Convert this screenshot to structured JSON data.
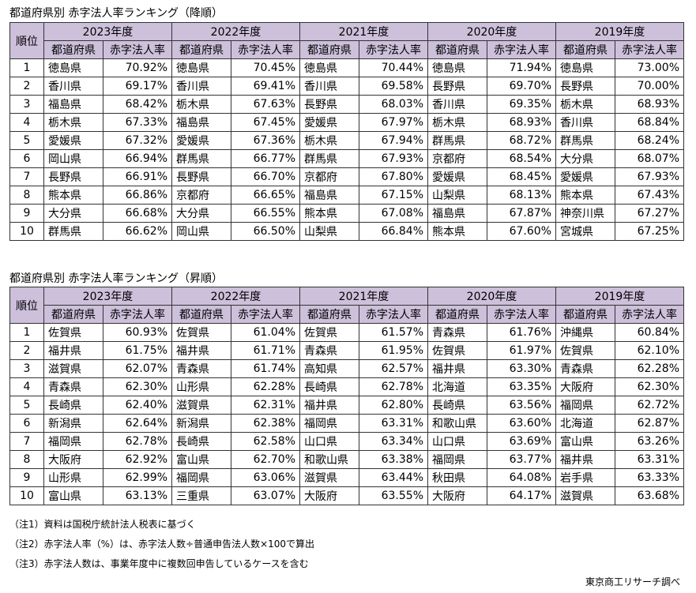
{
  "tables": [
    {
      "title": "都道府県別 赤字法人率ランキング（降順）",
      "header": [
        [
          "順位",
          "2023年度",
          "2022年度",
          "2021年度",
          "2020年度",
          "2019年度"
        ],
        [
          "都道府県",
          "赤字法人率",
          "都道府県",
          "赤字法人率",
          "都道府県",
          "赤字法人率",
          "都道府県",
          "赤字法人率",
          "都道府県",
          "赤字法人率"
        ]
      ],
      "rows": [
        [
          1,
          "徳島県",
          "70.92%",
          "徳島県",
          "70.45%",
          "徳島県",
          "70.44%",
          "徳島県",
          "71.94%",
          "徳島県",
          "73.00%"
        ],
        [
          2,
          "香川県",
          "69.17%",
          "香川県",
          "69.41%",
          "香川県",
          "69.58%",
          "長野県",
          "69.70%",
          "長野県",
          "70.00%"
        ],
        [
          3,
          "福島県",
          "68.42%",
          "栃木県",
          "67.63%",
          "長野県",
          "68.03%",
          "香川県",
          "69.35%",
          "栃木県",
          "68.93%"
        ],
        [
          4,
          "栃木県",
          "67.33%",
          "福島県",
          "67.45%",
          "愛媛県",
          "67.97%",
          "栃木県",
          "68.93%",
          "香川県",
          "68.84%"
        ],
        [
          5,
          "愛媛県",
          "67.32%",
          "愛媛県",
          "67.36%",
          "栃木県",
          "67.94%",
          "群馬県",
          "68.72%",
          "群馬県",
          "68.24%"
        ],
        [
          6,
          "岡山県",
          "66.94%",
          "群馬県",
          "66.77%",
          "群馬県",
          "67.93%",
          "京都府",
          "68.54%",
          "大分県",
          "68.07%"
        ],
        [
          7,
          "長野県",
          "66.91%",
          "長野県",
          "66.70%",
          "京都府",
          "67.80%",
          "愛媛県",
          "68.45%",
          "愛媛県",
          "67.93%"
        ],
        [
          8,
          "熊本県",
          "66.86%",
          "京都府",
          "66.65%",
          "福島県",
          "67.15%",
          "山梨県",
          "68.13%",
          "熊本県",
          "67.43%"
        ],
        [
          9,
          "大分県",
          "66.68%",
          "大分県",
          "66.55%",
          "熊本県",
          "67.08%",
          "福島県",
          "67.87%",
          "神奈川県",
          "67.27%"
        ],
        [
          10,
          "群馬県",
          "66.62%",
          "岡山県",
          "66.50%",
          "山梨県",
          "66.84%",
          "熊本県",
          "67.60%",
          "宮城県",
          "67.25%"
        ]
      ]
    },
    {
      "title": "都道府県別 赤字法人率ランキング（昇順）",
      "header": [
        [
          "順位",
          "2023年度",
          "2022年度",
          "2021年度",
          "2020年度",
          "2019年度"
        ],
        [
          "都道府県",
          "赤字法人率",
          "都道府県",
          "赤字法人率",
          "都道府県",
          "赤字法人率",
          "都道府県",
          "赤字法人率",
          "都道府県",
          "赤字法人率"
        ]
      ],
      "rows": [
        [
          1,
          "佐賀県",
          "60.93%",
          "佐賀県",
          "61.04%",
          "佐賀県",
          "61.57%",
          "青森県",
          "61.76%",
          "沖縄県",
          "60.84%"
        ],
        [
          2,
          "福井県",
          "61.75%",
          "福井県",
          "61.71%",
          "青森県",
          "61.95%",
          "佐賀県",
          "61.97%",
          "佐賀県",
          "62.10%"
        ],
        [
          3,
          "滋賀県",
          "62.07%",
          "青森県",
          "61.74%",
          "高知県",
          "62.57%",
          "福井県",
          "63.30%",
          "青森県",
          "62.28%"
        ],
        [
          4,
          "青森県",
          "62.30%",
          "山形県",
          "62.28%",
          "長崎県",
          "62.78%",
          "北海道",
          "63.35%",
          "大阪府",
          "62.30%"
        ],
        [
          5,
          "長崎県",
          "62.40%",
          "滋賀県",
          "62.31%",
          "福井県",
          "62.80%",
          "長崎県",
          "63.56%",
          "福岡県",
          "62.72%"
        ],
        [
          6,
          "新潟県",
          "62.64%",
          "新潟県",
          "62.38%",
          "福岡県",
          "63.31%",
          "和歌山県",
          "63.60%",
          "北海道",
          "62.87%"
        ],
        [
          7,
          "福岡県",
          "62.78%",
          "長崎県",
          "62.58%",
          "山口県",
          "63.34%",
          "山口県",
          "63.69%",
          "富山県",
          "63.26%"
        ],
        [
          8,
          "大阪府",
          "62.92%",
          "富山県",
          "62.70%",
          "和歌山県",
          "63.38%",
          "福岡県",
          "63.77%",
          "福井県",
          "63.31%"
        ],
        [
          9,
          "山形県",
          "62.99%",
          "福岡県",
          "63.06%",
          "滋賀県",
          "63.44%",
          "秋田県",
          "64.08%",
          "岩手県",
          "63.33%"
        ],
        [
          10,
          "富山県",
          "63.13%",
          "三重県",
          "63.07%",
          "大阪府",
          "63.55%",
          "大阪府",
          "64.17%",
          "滋賀県",
          "63.68%"
        ]
      ]
    }
  ],
  "notes": [
    "（注1）資料は国税庁統計法人税表に基づく",
    "（注2）赤字法人率（%）は、赤字法人数÷普通申告法人数×100で算出",
    "（注3）赤字法人数は、事業年度中に複数回申告しているケースを含む"
  ],
  "credit": "東京商工リサーチ調べ"
}
